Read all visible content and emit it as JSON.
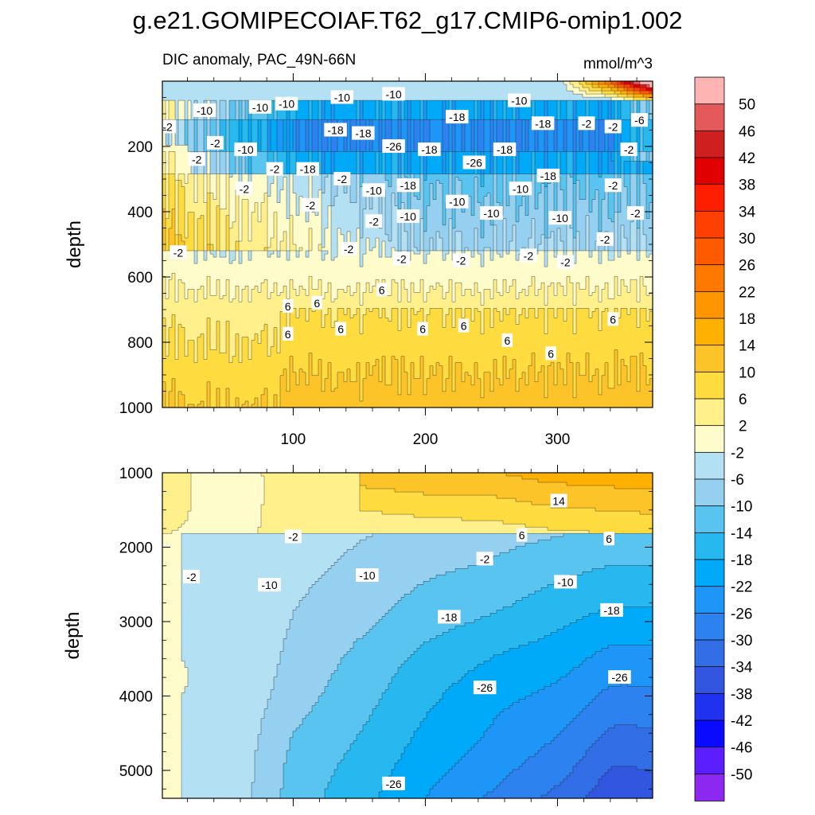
{
  "title": "g.e21.GOMIPECOIAF.T62_g17.CMIP6-omip1.002",
  "subtitle_left": "DIC anomaly, PAC_49N-66N",
  "units": "mmol/m^3",
  "chart_data": {
    "type": "heatmap",
    "variable": "DIC anomaly",
    "region": "PAC_49N-66N",
    "units": "mmol/m^3",
    "x_range": [
      1,
      372
    ],
    "x_ticks": [
      100,
      200,
      300
    ],
    "colorbar": {
      "labels": [
        "50",
        "46",
        "42",
        "38",
        "34",
        "30",
        "26",
        "22",
        "18",
        "14",
        "10",
        "6",
        "2",
        "-2",
        "-6",
        "-10",
        "-14",
        "-18",
        "-22",
        "-26",
        "-30",
        "-34",
        "-38",
        "-42",
        "-46",
        "-50"
      ],
      "colors": [
        "#ffb4b4",
        "#e45959",
        "#d01f1f",
        "#e00000",
        "#ff1e00",
        "#ff4000",
        "#ff5a00",
        "#ff7800",
        "#ff9600",
        "#ffb000",
        "#fdc42a",
        "#fedc40",
        "#fff08c",
        "#fffccc",
        "#b4e0f4",
        "#96d0f0",
        "#5ac4f0",
        "#28b8f0",
        "#00aaf8",
        "#1e96f8",
        "#2d82f0",
        "#326ee6",
        "#3256e0",
        "#1e32f0",
        "#0a0aff",
        "#5a1eff",
        "#8c28f0"
      ]
    },
    "panels": [
      {
        "name": "upper",
        "ylabel": "depth",
        "ylim": [
          0,
          1000
        ],
        "y_ticks": [
          200,
          400,
          600,
          800,
          1000
        ],
        "contour_labels": [
          {
            "text": "-2",
            "x": 5,
            "y": 140
          },
          {
            "text": "-10",
            "x": 33,
            "y": 90
          },
          {
            "text": "-2",
            "x": 41,
            "y": 190
          },
          {
            "text": "-2",
            "x": 27,
            "y": 240
          },
          {
            "text": "-10",
            "x": 75,
            "y": 80
          },
          {
            "text": "-10",
            "x": 95,
            "y": 70
          },
          {
            "text": "-10",
            "x": 64,
            "y": 210
          },
          {
            "text": "-2",
            "x": 63,
            "y": 330
          },
          {
            "text": "-2",
            "x": 86,
            "y": 270
          },
          {
            "text": "-18",
            "x": 111,
            "y": 270
          },
          {
            "text": "-18",
            "x": 132,
            "y": 150
          },
          {
            "text": "-18",
            "x": 153,
            "y": 160
          },
          {
            "text": "-2",
            "x": 137,
            "y": 300
          },
          {
            "text": "-10",
            "x": 137,
            "y": 50
          },
          {
            "text": "-10",
            "x": 176,
            "y": 40
          },
          {
            "text": "-26",
            "x": 176,
            "y": 200
          },
          {
            "text": "-18",
            "x": 203,
            "y": 210
          },
          {
            "text": "-18",
            "x": 187,
            "y": 320
          },
          {
            "text": "-10",
            "x": 161,
            "y": 335
          },
          {
            "text": "-2",
            "x": 113,
            "y": 380
          },
          {
            "text": "-2",
            "x": 161,
            "y": 430
          },
          {
            "text": "-10",
            "x": 187,
            "y": 415
          },
          {
            "text": "-18",
            "x": 224,
            "y": 110
          },
          {
            "text": "-26",
            "x": 237,
            "y": 250
          },
          {
            "text": "-18",
            "x": 260,
            "y": 210
          },
          {
            "text": "-10",
            "x": 271,
            "y": 60
          },
          {
            "text": "-10",
            "x": 224,
            "y": 370
          },
          {
            "text": "-10",
            "x": 250,
            "y": 405
          },
          {
            "text": "-10",
            "x": 272,
            "y": 330
          },
          {
            "text": "-18",
            "x": 289,
            "y": 130
          },
          {
            "text": "-18",
            "x": 293,
            "y": 290
          },
          {
            "text": "-2",
            "x": 322,
            "y": 130
          },
          {
            "text": "-2",
            "x": 342,
            "y": 140
          },
          {
            "text": "-6",
            "x": 362,
            "y": 120
          },
          {
            "text": "-2",
            "x": 354,
            "y": 210
          },
          {
            "text": "-2",
            "x": 342,
            "y": 320
          },
          {
            "text": "-10",
            "x": 302,
            "y": 420
          },
          {
            "text": "-2",
            "x": 336,
            "y": 485
          },
          {
            "text": "-2",
            "x": 359,
            "y": 405
          },
          {
            "text": "-2",
            "x": 13,
            "y": 525
          },
          {
            "text": "-2",
            "x": 142,
            "y": 515
          },
          {
            "text": "-2",
            "x": 182,
            "y": 545
          },
          {
            "text": "-2",
            "x": 227,
            "y": 550
          },
          {
            "text": "-2",
            "x": 278,
            "y": 535
          },
          {
            "text": "-2",
            "x": 306,
            "y": 555
          },
          {
            "text": "6",
            "x": 96,
            "y": 690
          },
          {
            "text": "6",
            "x": 118,
            "y": 680
          },
          {
            "text": "6",
            "x": 167,
            "y": 640
          },
          {
            "text": "6",
            "x": 96,
            "y": 775
          },
          {
            "text": "6",
            "x": 136,
            "y": 760
          },
          {
            "text": "6",
            "x": 198,
            "y": 760
          },
          {
            "text": "6",
            "x": 229,
            "y": 750
          },
          {
            "text": "6",
            "x": 262,
            "y": 795
          },
          {
            "text": "6",
            "x": 295,
            "y": 835
          },
          {
            "text": "6",
            "x": 342,
            "y": 730
          }
        ]
      },
      {
        "name": "lower",
        "ylabel": "depth",
        "ylim": [
          1000,
          5375
        ],
        "y_ticks": [
          1000,
          2000,
          3000,
          4000,
          5000
        ],
        "contour_labels": [
          {
            "text": "14",
            "x": 301,
            "y": 1380
          },
          {
            "text": "6",
            "x": 273,
            "y": 1840
          },
          {
            "text": "6",
            "x": 339,
            "y": 1890
          },
          {
            "text": "-2",
            "x": 100,
            "y": 1860
          },
          {
            "text": "-2",
            "x": 245,
            "y": 2160
          },
          {
            "text": "-2",
            "x": 23,
            "y": 2400
          },
          {
            "text": "-10",
            "x": 82,
            "y": 2510
          },
          {
            "text": "-10",
            "x": 156,
            "y": 2380
          },
          {
            "text": "-10",
            "x": 306,
            "y": 2470
          },
          {
            "text": "-18",
            "x": 218,
            "y": 2940
          },
          {
            "text": "-18",
            "x": 341,
            "y": 2850
          },
          {
            "text": "-26",
            "x": 245,
            "y": 3890
          },
          {
            "text": "-26",
            "x": 347,
            "y": 3750
          },
          {
            "text": "-26",
            "x": 176,
            "y": 5180
          }
        ]
      }
    ],
    "shared_xlabel": ""
  }
}
